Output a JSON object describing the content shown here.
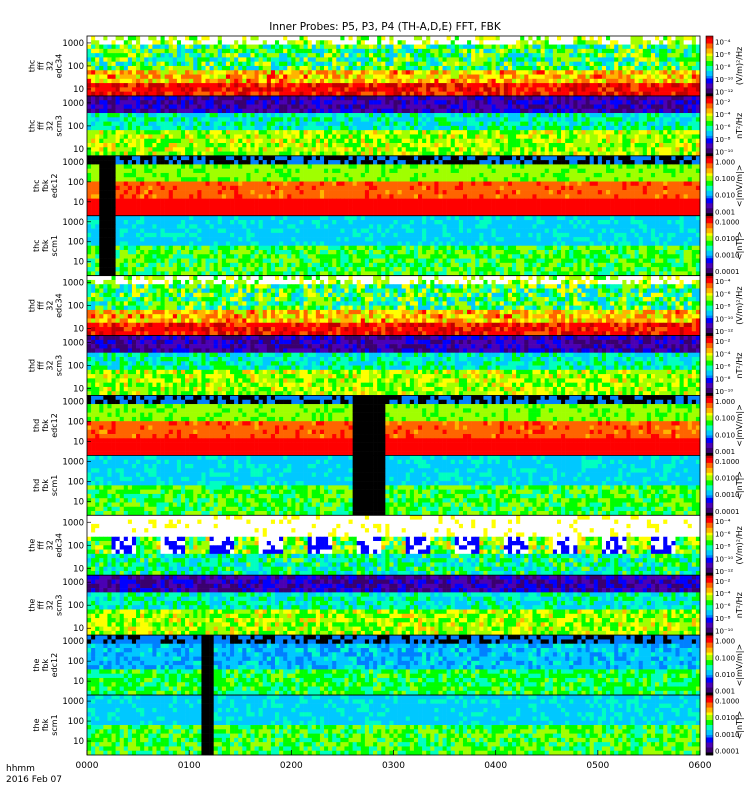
{
  "title": "Inner Probes: P5, P3, P4 (TH-A,D,E) FFT, FBK",
  "time_axis": {
    "tick_labels": [
      "0000",
      "0100",
      "0200",
      "0300",
      "0400",
      "0500",
      "0600"
    ],
    "unit_label": "hhmm",
    "date_label": "2016 Feb 07"
  },
  "colors": {
    "rainbow": [
      "#000000",
      "#3a006e",
      "#4b00b4",
      "#0000ff",
      "#0080ff",
      "#00c8ff",
      "#00ffc0",
      "#00ff00",
      "#a0ff00",
      "#ffff00",
      "#ffb400",
      "#ff6400",
      "#ff0000",
      "#c00000"
    ],
    "background": "#ffffff"
  },
  "chart_data": [
    {
      "type": "heatmap",
      "panel": "thc fff 32 edc34",
      "probe": "P5",
      "ylabels": [
        "thc",
        "fff",
        "32",
        "edc34"
      ],
      "yticks": [
        "1000",
        "100",
        "10"
      ],
      "zlabel": "(V/m)²/Hz",
      "zticks": [
        "10⁻⁴",
        "10⁻⁶",
        "10⁻⁸",
        "10⁻¹⁰",
        "10⁻¹²"
      ],
      "yscale": "log",
      "ylim": [
        5,
        2000
      ],
      "x_range": [
        "0000",
        "0600"
      ],
      "pattern": "fft_e",
      "data_gaps": []
    },
    {
      "type": "heatmap",
      "panel": "thc fff 32 scm3",
      "probe": "P5",
      "ylabels": [
        "thc",
        "fff",
        "32",
        "scm3"
      ],
      "yticks": [
        "1000",
        "100",
        "10"
      ],
      "zlabel": "nT²/Hz",
      "zticks": [
        "10⁻²",
        "10⁻⁴",
        "10⁻⁶",
        "10⁻⁸",
        "10⁻¹⁰"
      ],
      "yscale": "log",
      "ylim": [
        5,
        2000
      ],
      "x_range": [
        "0000",
        "0600"
      ],
      "pattern": "fft_b",
      "data_gaps": []
    },
    {
      "type": "heatmap",
      "panel": "thc fbk edc12",
      "probe": "P5",
      "ylabels": [
        "thc",
        "fbk",
        "edc12"
      ],
      "yticks": [
        "1000",
        "100",
        "10"
      ],
      "zlabel": "<|mV/m|>",
      "zticks": [
        "1.000",
        "0.100",
        "0.010",
        "0.001"
      ],
      "yscale": "log",
      "ylim": [
        2,
        2000
      ],
      "x_range": [
        "0000",
        "0600"
      ],
      "pattern": "fbk_e",
      "data_gaps": [
        [
          "0005",
          "0015"
        ]
      ]
    },
    {
      "type": "heatmap",
      "panel": "thc fbk scm1",
      "probe": "P5",
      "ylabels": [
        "thc",
        "fbk",
        "scm1"
      ],
      "yticks": [
        "1000",
        "100",
        "10"
      ],
      "zlabel": "<|nT|>",
      "zticks": [
        "0.1000",
        "0.0100",
        "0.0010",
        "0.0001"
      ],
      "yscale": "log",
      "ylim": [
        2,
        2000
      ],
      "x_range": [
        "0000",
        "0600"
      ],
      "pattern": "fbk_b",
      "data_gaps": [
        [
          "0005",
          "0015"
        ]
      ]
    },
    {
      "type": "heatmap",
      "panel": "thd fff 32 edc34",
      "probe": "P3",
      "ylabels": [
        "thd",
        "fff",
        "32",
        "edc34"
      ],
      "yticks": [
        "1000",
        "100",
        "10"
      ],
      "zlabel": "(V/m)²/Hz",
      "zticks": [
        "10⁻⁴",
        "10⁻⁶",
        "10⁻⁸",
        "10⁻¹⁰",
        "10⁻¹²"
      ],
      "yscale": "log",
      "ylim": [
        5,
        2000
      ],
      "x_range": [
        "0000",
        "0600"
      ],
      "pattern": "fft_e",
      "data_gaps": []
    },
    {
      "type": "heatmap",
      "panel": "thd fff 32 scm3",
      "probe": "P3",
      "ylabels": [
        "thd",
        "fff",
        "32",
        "scm3"
      ],
      "yticks": [
        "1000",
        "100",
        "10"
      ],
      "zlabel": "nT²/Hz",
      "zticks": [
        "10⁻²",
        "10⁻⁴",
        "10⁻⁶",
        "10⁻⁸",
        "10⁻¹⁰"
      ],
      "yscale": "log",
      "ylim": [
        5,
        2000
      ],
      "x_range": [
        "0000",
        "0600"
      ],
      "pattern": "fft_b",
      "data_gaps": []
    },
    {
      "type": "heatmap",
      "panel": "thd fbk edc12",
      "probe": "P3",
      "ylabels": [
        "thd",
        "fbk",
        "edc12"
      ],
      "yticks": [
        "1000",
        "100",
        "10"
      ],
      "zlabel": "<|mV/m|>",
      "zticks": [
        "1.000",
        "0.100",
        "0.010",
        "0.001"
      ],
      "yscale": "log",
      "ylim": [
        2,
        2000
      ],
      "x_range": [
        "0000",
        "0600"
      ],
      "pattern": "fbk_e",
      "data_gaps": [
        [
          "0235",
          "0255"
        ]
      ]
    },
    {
      "type": "heatmap",
      "panel": "thd fbk scm1",
      "probe": "P3",
      "ylabels": [
        "thd",
        "fbk",
        "scm1"
      ],
      "yticks": [
        "1000",
        "100",
        "10"
      ],
      "zlabel": "<|nT|>",
      "zticks": [
        "0.1000",
        "0.0100",
        "0.0010",
        "0.0001"
      ],
      "yscale": "log",
      "ylim": [
        2,
        2000
      ],
      "x_range": [
        "0000",
        "0600"
      ],
      "pattern": "fbk_b",
      "data_gaps": [
        [
          "0235",
          "0255"
        ]
      ]
    },
    {
      "type": "heatmap",
      "panel": "the fff 32 edc34",
      "probe": "P4",
      "ylabels": [
        "the",
        "fff",
        "32",
        "edc34"
      ],
      "yticks": [
        "1000",
        "100",
        "10"
      ],
      "zlabel": "(V/m)²/Hz",
      "zticks": [
        "10⁻⁴",
        "10⁻⁶",
        "10⁻⁸",
        "10⁻¹⁰",
        "10⁻¹²"
      ],
      "yscale": "log",
      "ylim": [
        5,
        2000
      ],
      "x_range": [
        "0000",
        "0600"
      ],
      "pattern": "fft_e_sparse",
      "data_gaps": []
    },
    {
      "type": "heatmap",
      "panel": "the fff 32 scm3",
      "probe": "P4",
      "ylabels": [
        "the",
        "fff",
        "32",
        "scm3"
      ],
      "yticks": [
        "1000",
        "100",
        "10"
      ],
      "zlabel": "nT²/Hz",
      "zticks": [
        "10⁻²",
        "10⁻⁴",
        "10⁻⁶",
        "10⁻⁸",
        "10⁻¹⁰"
      ],
      "yscale": "log",
      "ylim": [
        5,
        2000
      ],
      "x_range": [
        "0000",
        "0600"
      ],
      "pattern": "fft_b",
      "data_gaps": []
    },
    {
      "type": "heatmap",
      "panel": "the fbk edc12",
      "probe": "P4",
      "ylabels": [
        "the",
        "fbk",
        "edc12"
      ],
      "yticks": [
        "1000",
        "100",
        "10"
      ],
      "zlabel": "<|mV/m|>",
      "zticks": [
        "1.000",
        "0.100",
        "0.010",
        "0.001"
      ],
      "yscale": "log",
      "ylim": [
        2,
        2000
      ],
      "x_range": [
        "0000",
        "0600"
      ],
      "pattern": "fbk_e_low",
      "data_gaps": [
        [
          "0107",
          "0113"
        ]
      ]
    },
    {
      "type": "heatmap",
      "panel": "the fbk scm1",
      "probe": "P4",
      "ylabels": [
        "the",
        "fbk",
        "scm1"
      ],
      "yticks": [
        "1000",
        "100",
        "10"
      ],
      "zlabel": "<|nT|>",
      "zticks": [
        "0.1000",
        "0.0100",
        "0.0010",
        "0.0001"
      ],
      "yscale": "log",
      "ylim": [
        2,
        2000
      ],
      "x_range": [
        "0000",
        "0600"
      ],
      "pattern": "fbk_b",
      "data_gaps": [
        [
          "0107",
          "0113"
        ]
      ]
    }
  ]
}
